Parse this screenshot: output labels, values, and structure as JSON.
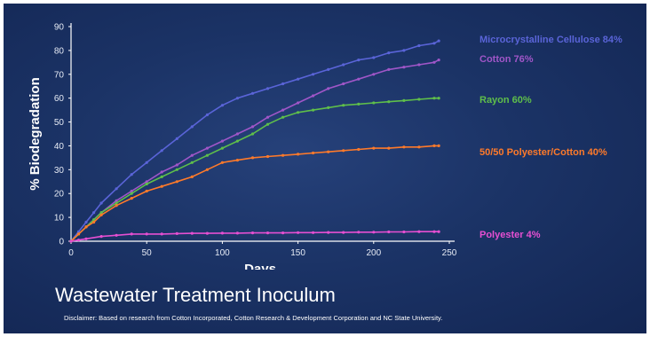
{
  "chart_data": {
    "type": "line",
    "xlabel": "Days",
    "ylabel": "% Biodegradation",
    "xlim": [
      0,
      250
    ],
    "ylim": [
      0,
      90
    ],
    "xticks": [
      0,
      50,
      100,
      150,
      200,
      250
    ],
    "yticks": [
      0,
      10,
      20,
      30,
      40,
      50,
      60,
      70,
      80,
      90
    ],
    "grid": false,
    "legend": "right of each series",
    "series": [
      {
        "name": "Microcrystalline Cellulose",
        "label": "Microcrystalline Cellulose  84%",
        "color": "#5a64d8",
        "x": [
          0,
          5,
          10,
          15,
          20,
          30,
          40,
          50,
          60,
          70,
          80,
          90,
          100,
          110,
          120,
          130,
          140,
          150,
          160,
          170,
          180,
          190,
          200,
          210,
          220,
          230,
          240,
          243
        ],
        "y": [
          0,
          4,
          8,
          12,
          16,
          22,
          28,
          33,
          38,
          43,
          48,
          53,
          57,
          60,
          62,
          64,
          66,
          68,
          70,
          72,
          74,
          76,
          77,
          79,
          80,
          82,
          83,
          84
        ]
      },
      {
        "name": "Cotton",
        "label": "Cotton 76%",
        "color": "#a056c8",
        "x": [
          0,
          5,
          10,
          15,
          20,
          30,
          40,
          50,
          60,
          70,
          80,
          90,
          100,
          110,
          120,
          130,
          140,
          150,
          160,
          170,
          180,
          190,
          200,
          210,
          220,
          230,
          240,
          243
        ],
        "y": [
          0,
          3,
          6,
          9,
          12,
          17,
          21,
          25,
          29,
          32,
          36,
          39,
          42,
          45,
          48,
          52,
          55,
          58,
          61,
          64,
          66,
          68,
          70,
          72,
          73,
          74,
          75,
          76
        ]
      },
      {
        "name": "Rayon",
        "label": "Rayon 60%",
        "color": "#5fbf4a",
        "x": [
          0,
          5,
          10,
          15,
          20,
          30,
          40,
          50,
          60,
          70,
          80,
          90,
          100,
          110,
          120,
          130,
          140,
          150,
          160,
          170,
          180,
          190,
          200,
          210,
          220,
          230,
          240,
          243
        ],
        "y": [
          0,
          3,
          6,
          9,
          12,
          16,
          20,
          24,
          27,
          30,
          33,
          36,
          39,
          42,
          45,
          49,
          52,
          54,
          55,
          56,
          57,
          57.5,
          58,
          58.5,
          59,
          59.5,
          60,
          60
        ]
      },
      {
        "name": "50/50 Polyester/Cotton",
        "label": "50/50 Polyester/Cotton  40%",
        "color": "#ff7a2a",
        "x": [
          0,
          5,
          10,
          15,
          20,
          30,
          40,
          50,
          60,
          70,
          80,
          90,
          100,
          110,
          120,
          130,
          140,
          150,
          160,
          170,
          180,
          190,
          200,
          210,
          220,
          230,
          240,
          243
        ],
        "y": [
          0,
          3,
          6,
          8,
          11,
          15,
          18,
          21,
          23,
          25,
          27,
          30,
          33,
          34,
          35,
          35.5,
          36,
          36.5,
          37,
          37.5,
          38,
          38.5,
          39,
          39,
          39.5,
          39.5,
          40,
          40
        ]
      },
      {
        "name": "Polyester",
        "label": "Polyester  4%",
        "color": "#e64fd2",
        "x": [
          0,
          5,
          10,
          20,
          30,
          40,
          50,
          60,
          70,
          80,
          90,
          100,
          110,
          120,
          130,
          140,
          150,
          160,
          170,
          180,
          190,
          200,
          210,
          220,
          230,
          240,
          243
        ],
        "y": [
          0,
          0.5,
          1,
          2,
          2.5,
          3,
          3,
          3,
          3.2,
          3.3,
          3.3,
          3.4,
          3.4,
          3.5,
          3.5,
          3.5,
          3.6,
          3.6,
          3.7,
          3.7,
          3.8,
          3.8,
          3.9,
          3.9,
          4,
          4,
          4
        ]
      }
    ]
  },
  "subtitle": "Wastewater Treatment Inoculum",
  "disclaimer": "Disclaimer:  Based on research from Cotton Incorporated, Cotton Research & Development Corporation and NC State University.",
  "colors": {
    "background": "#1b3366",
    "axis": "#ffffff",
    "text": "#ffffff"
  }
}
